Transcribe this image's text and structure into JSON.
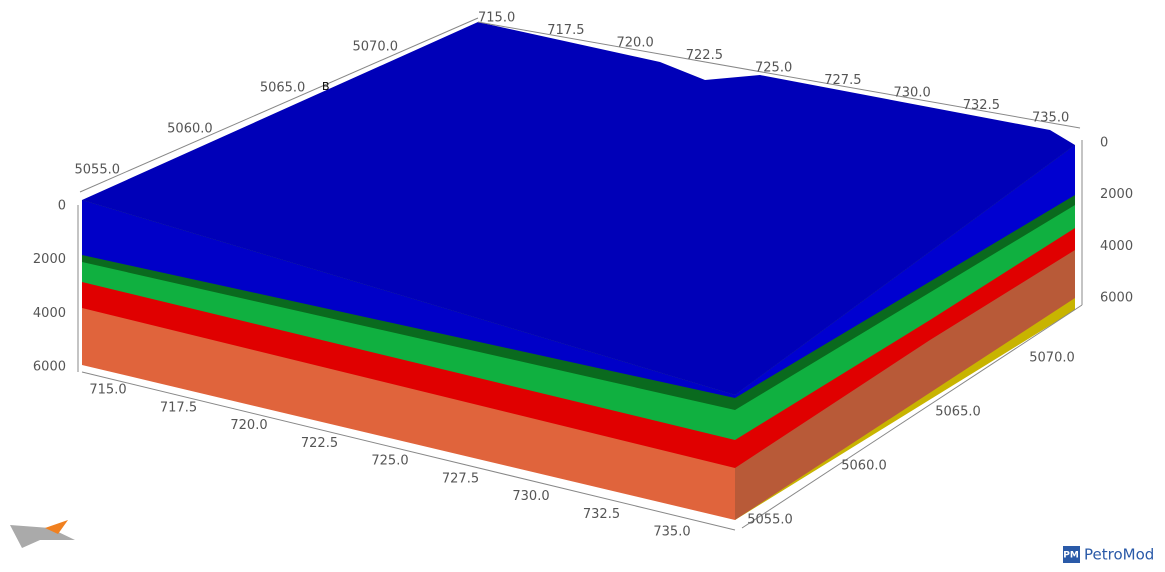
{
  "axes": {
    "back_x": [
      "715.0",
      "717.5",
      "720.0",
      "722.5",
      "725.0",
      "727.5",
      "730.0",
      "732.5",
      "735.0"
    ],
    "back_y": [
      "5055.0",
      "5060.0",
      "5065.0",
      "5070.0"
    ],
    "left_depth": [
      "0",
      "2000",
      "4000",
      "6000"
    ],
    "right_depth": [
      "0",
      "2000",
      "4000",
      "6000"
    ],
    "front_x": [
      "715.0",
      "717.5",
      "720.0",
      "722.5",
      "725.0",
      "727.5",
      "730.0",
      "732.5",
      "735.0"
    ],
    "right_y": [
      "5055.0",
      "5060.0",
      "5065.0",
      "5070.0"
    ]
  },
  "wells": [
    "B"
  ],
  "logo": {
    "badge": "PM",
    "name": "PetroMod"
  }
}
